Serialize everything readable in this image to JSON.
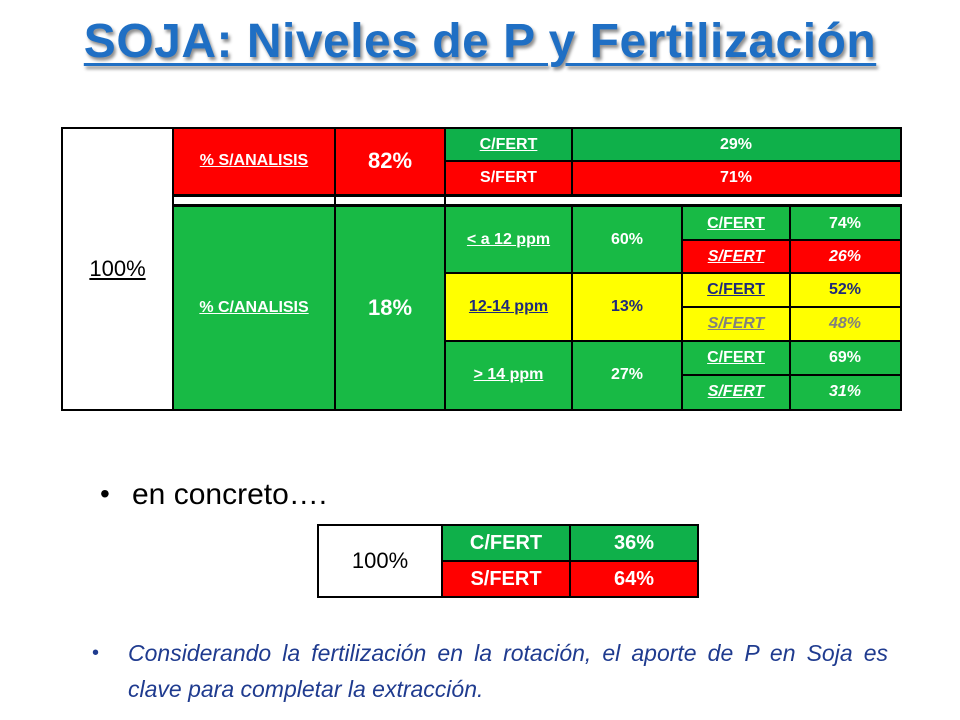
{
  "title": "SOJA: Niveles de P y Fertilización",
  "table1": {
    "total": "100%",
    "s_analisis": {
      "label": "% S/ANALISIS",
      "pct": "82%",
      "c_fert_label": "C/FERT",
      "c_fert_pct": "29%",
      "s_fert_label": "S/FERT",
      "s_fert_pct": "71%"
    },
    "c_analisis": {
      "label": "% C/ANALISIS",
      "pct": "18%",
      "ranges": [
        {
          "range": "< a 12 ppm",
          "pct": "60%",
          "c_fert_label": "C/FERT",
          "c_fert_pct": "74%",
          "s_fert_label": "S/FERT",
          "s_fert_pct": "26%"
        },
        {
          "range": "12-14 ppm",
          "pct": "13%",
          "c_fert_label": "C/FERT",
          "c_fert_pct": "52%",
          "s_fert_label": "S/FERT",
          "s_fert_pct": "48%"
        },
        {
          "range": "> 14 ppm",
          "pct": "27%",
          "c_fert_label": "C/FERT",
          "c_fert_pct": "69%",
          "s_fert_label": "S/FERT",
          "s_fert_pct": "31%"
        }
      ]
    }
  },
  "bullet1": "en concreto….",
  "table2": {
    "total": "100%",
    "c_fert_label": "C/FERT",
    "c_fert_pct": "36%",
    "s_fert_label": "S/FERT",
    "s_fert_pct": "64%"
  },
  "bullet2": "Considerando la fertilización en la rotación, el aporte de P en Soja es clave para completar la extracción.",
  "colors": {
    "title": "#1f6fc4",
    "red": "#ff0000",
    "green": "#0fb04a",
    "yellow": "#ffff00",
    "bullet_text": "#1f3b8f"
  }
}
